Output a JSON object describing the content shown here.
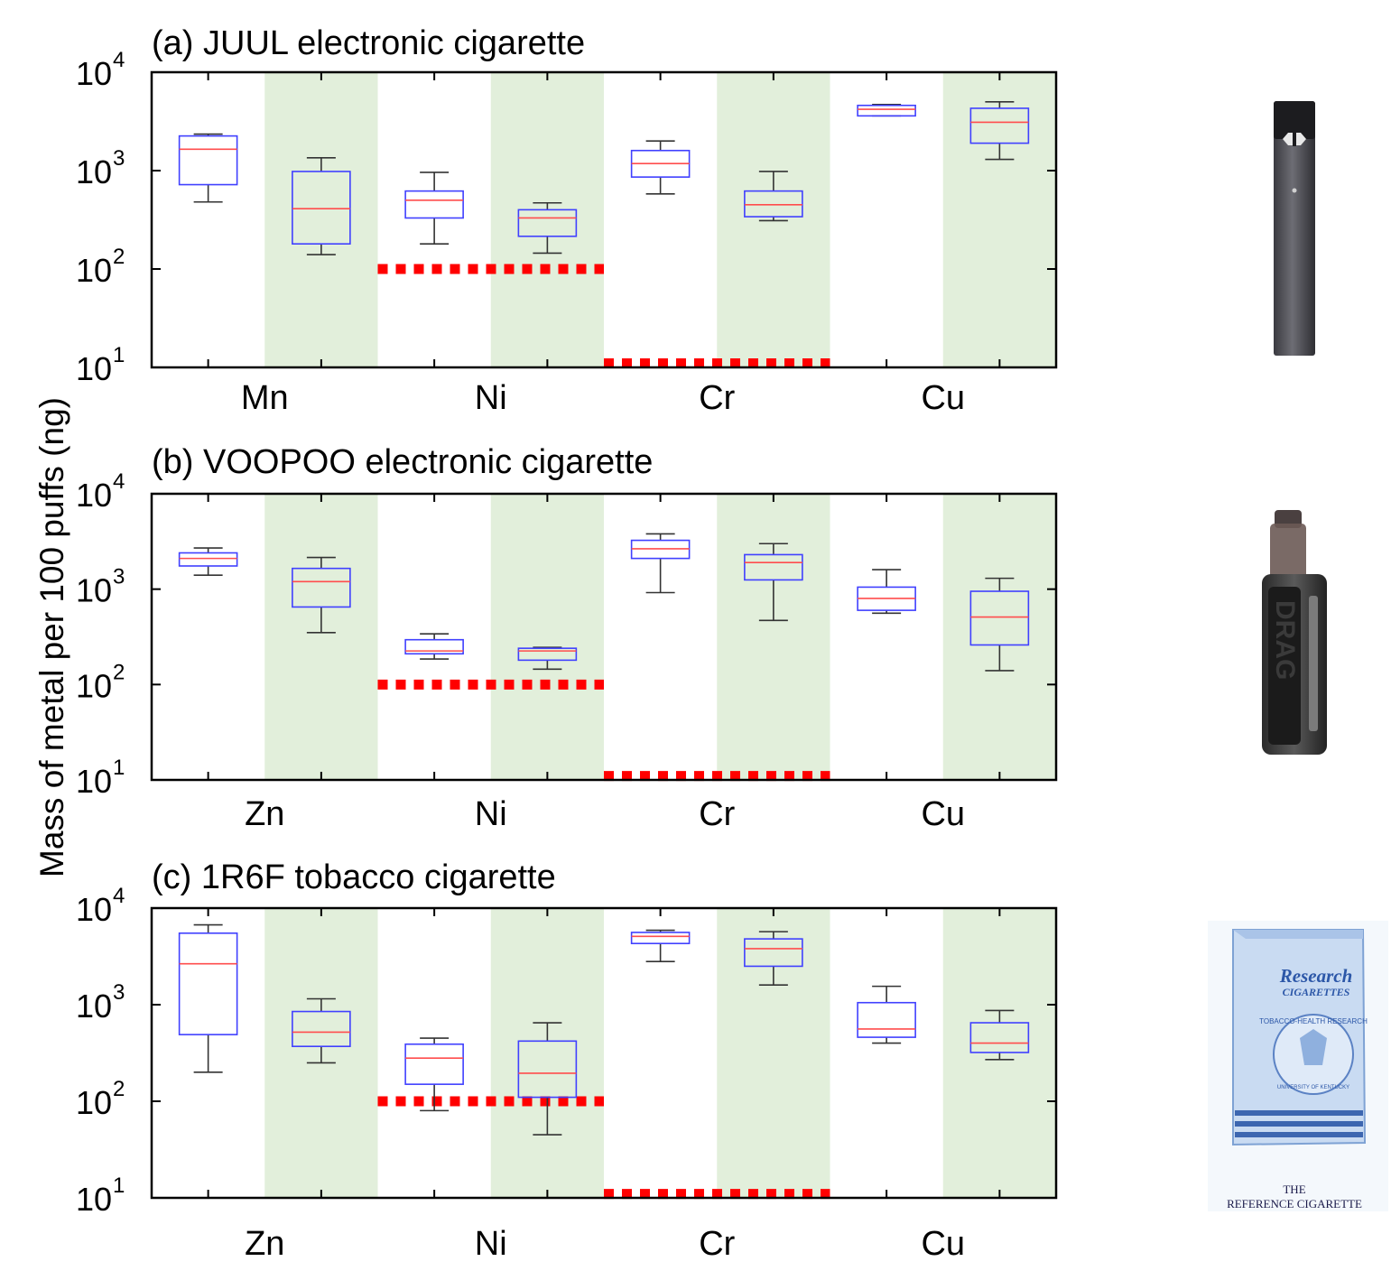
{
  "figure": {
    "shared_ylabel": "Mass of metal per 100 puffs (ng)",
    "colors": {
      "box": "#4040ff",
      "median": "#ff4d4d",
      "whisker": "#333333",
      "shade": "#e2efdb",
      "limit": "#ff0000",
      "axis": "#000000"
    }
  },
  "images": {
    "juul": {
      "name": "juul-device-photo"
    },
    "voopoo": {
      "name": "voopoo-device-photo",
      "text": "DRAG"
    },
    "pack": {
      "name": "research-cigarettes-pack-photo",
      "brand": "Research",
      "brand2": "CIGARETTES",
      "seal": "TOBACCO-HEALTH RESEARCH",
      "seal2": "UNIVERSITY OF KENTUCKY",
      "caption1": "THE",
      "caption2": "REFERENCE CIGARETTE"
    }
  },
  "chart_data": [
    {
      "type": "box",
      "title": "(a) JUUL electronic cigarette",
      "categories": [
        "Mn",
        "Ni",
        "Cr",
        "Cu"
      ],
      "yscale": "log",
      "ylim": [
        10,
        10000
      ],
      "yticks": [
        "10",
        "10",
        "10",
        "10"
      ],
      "ytick_exps": [
        "1",
        "2",
        "3",
        "4"
      ],
      "shaded_positions": [
        2,
        4,
        6,
        8
      ],
      "boxes": [
        {
          "pos": 1,
          "whislo": 480,
          "q1": 720,
          "med": 1650,
          "q3": 2250,
          "whishi": 2350
        },
        {
          "pos": 2,
          "whislo": 140,
          "q1": 180,
          "med": 410,
          "q3": 980,
          "whishi": 1350
        },
        {
          "pos": 3,
          "whislo": 180,
          "q1": 330,
          "med": 500,
          "q3": 620,
          "whishi": 960
        },
        {
          "pos": 4,
          "whislo": 145,
          "q1": 215,
          "med": 330,
          "q3": 400,
          "whishi": 470
        },
        {
          "pos": 5,
          "whislo": 580,
          "q1": 860,
          "med": 1180,
          "q3": 1600,
          "whishi": 2000
        },
        {
          "pos": 6,
          "whislo": 310,
          "q1": 340,
          "med": 450,
          "q3": 620,
          "whishi": 980
        },
        {
          "pos": 7,
          "whislo": 3600,
          "q1": 3600,
          "med": 4200,
          "q3": 4600,
          "whishi": 4700
        },
        {
          "pos": 8,
          "whislo": 1300,
          "q1": 1900,
          "med": 3100,
          "q3": 4300,
          "whishi": 5000
        }
      ],
      "limits": [
        {
          "from": 3,
          "to": 4,
          "value": 100
        },
        {
          "from": 5,
          "to": 6,
          "value": 11
        }
      ]
    },
    {
      "type": "box",
      "title": "(b) VOOPOO electronic cigarette",
      "categories": [
        "Zn",
        "Ni",
        "Cr",
        "Cu"
      ],
      "yscale": "log",
      "ylim": [
        10,
        10000
      ],
      "yticks": [
        "10",
        "10",
        "10",
        "10"
      ],
      "ytick_exps": [
        "1",
        "2",
        "3",
        "4"
      ],
      "shaded_positions": [
        2,
        4,
        6,
        8
      ],
      "boxes": [
        {
          "pos": 1,
          "whislo": 1400,
          "q1": 1750,
          "med": 2100,
          "q3": 2400,
          "whishi": 2700
        },
        {
          "pos": 2,
          "whislo": 350,
          "q1": 650,
          "med": 1200,
          "q3": 1650,
          "whishi": 2150
        },
        {
          "pos": 3,
          "whislo": 185,
          "q1": 210,
          "med": 225,
          "q3": 295,
          "whishi": 340
        },
        {
          "pos": 4,
          "whislo": 145,
          "q1": 180,
          "med": 225,
          "q3": 240,
          "whishi": 245
        },
        {
          "pos": 5,
          "whislo": 920,
          "q1": 2100,
          "med": 2650,
          "q3": 3250,
          "whishi": 3800
        },
        {
          "pos": 6,
          "whislo": 470,
          "q1": 1250,
          "med": 1900,
          "q3": 2300,
          "whishi": 3000
        },
        {
          "pos": 7,
          "whislo": 560,
          "q1": 600,
          "med": 800,
          "q3": 1050,
          "whishi": 1600
        },
        {
          "pos": 8,
          "whislo": 140,
          "q1": 260,
          "med": 510,
          "q3": 950,
          "whishi": 1300
        }
      ],
      "limits": [
        {
          "from": 3,
          "to": 4,
          "value": 100
        },
        {
          "from": 5,
          "to": 6,
          "value": 11
        }
      ]
    },
    {
      "type": "box",
      "title": "(c) 1R6F tobacco cigarette",
      "categories": [
        "Zn",
        "Ni",
        "Cr",
        "Cu"
      ],
      "yscale": "log",
      "ylim": [
        10,
        10000
      ],
      "yticks": [
        "10",
        "10",
        "10",
        "10"
      ],
      "ytick_exps": [
        "1",
        "2",
        "3",
        "4"
      ],
      "shaded_positions": [
        2,
        4,
        6,
        8
      ],
      "boxes": [
        {
          "pos": 1,
          "whislo": 200,
          "q1": 490,
          "med": 2650,
          "q3": 5500,
          "whishi": 6700
        },
        {
          "pos": 2,
          "whislo": 250,
          "q1": 370,
          "med": 520,
          "q3": 850,
          "whishi": 1150
        },
        {
          "pos": 3,
          "whislo": 80,
          "q1": 150,
          "med": 280,
          "q3": 390,
          "whishi": 450
        },
        {
          "pos": 4,
          "whislo": 45,
          "q1": 110,
          "med": 195,
          "q3": 420,
          "whishi": 650
        },
        {
          "pos": 5,
          "whislo": 2800,
          "q1": 4300,
          "med": 5100,
          "q3": 5600,
          "whishi": 5900
        },
        {
          "pos": 6,
          "whislo": 1600,
          "q1": 2500,
          "med": 3800,
          "q3": 4800,
          "whishi": 5700
        },
        {
          "pos": 7,
          "whislo": 400,
          "q1": 460,
          "med": 560,
          "q3": 1050,
          "whishi": 1550
        },
        {
          "pos": 8,
          "whislo": 270,
          "q1": 320,
          "med": 400,
          "q3": 650,
          "whishi": 870
        }
      ],
      "limits": [
        {
          "from": 3,
          "to": 4,
          "value": 100
        },
        {
          "from": 5,
          "to": 6,
          "value": 11
        }
      ]
    }
  ]
}
